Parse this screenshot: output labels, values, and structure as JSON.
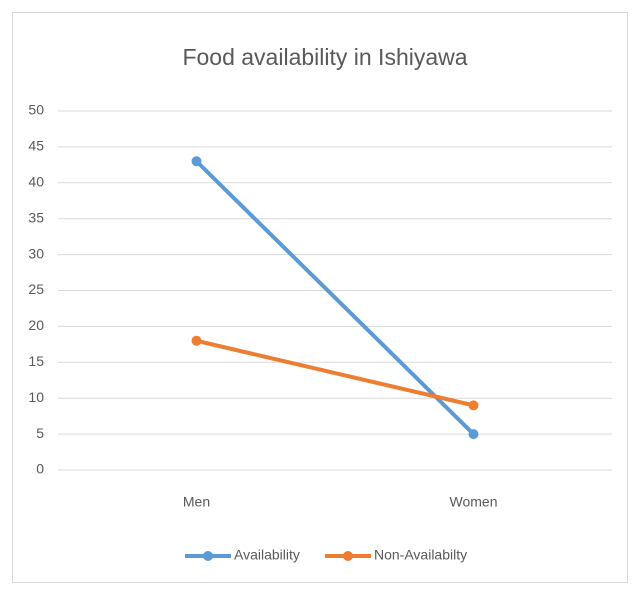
{
  "chart_data": {
    "type": "line",
    "title": "Food availability in Ishiyawa",
    "categories": [
      "Men",
      "Women"
    ],
    "series": [
      {
        "name": "Availability",
        "color": "#5b9bd5",
        "values": [
          43,
          5
        ]
      },
      {
        "name": "Non-Availabilty",
        "color": "#ed7d31",
        "values": [
          18,
          9
        ]
      }
    ],
    "ylim": [
      0,
      50
    ],
    "yticks": [
      0,
      5,
      10,
      15,
      20,
      25,
      30,
      35,
      40,
      45,
      50
    ],
    "grid": true,
    "legend": "bottom"
  }
}
